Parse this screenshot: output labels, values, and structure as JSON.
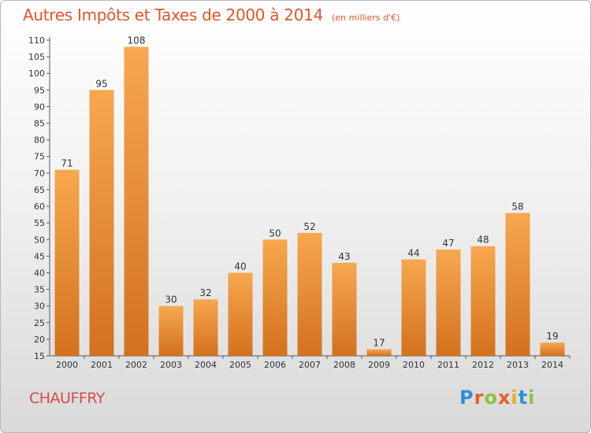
{
  "title": "Autres Impôts et Taxes de 2000 à 2014",
  "unit": "(en milliers d'€)",
  "commune": "CHAUFFRY",
  "logo": {
    "letters": [
      "P",
      "r",
      "o",
      "x",
      "i",
      "t",
      "i"
    ]
  },
  "colors": {
    "bar_top": "#f7a84f",
    "bar_bottom": "#d3711d",
    "title": "#e0562a",
    "commune": "#d54a4a"
  },
  "chart_data": {
    "type": "bar",
    "title": "Autres Impôts et Taxes de 2000 à 2014",
    "categories": [
      "2000",
      "2001",
      "2002",
      "2003",
      "2004",
      "2005",
      "2006",
      "2007",
      "2008",
      "2009",
      "2010",
      "2011",
      "2012",
      "2013",
      "2014"
    ],
    "values": [
      71,
      95,
      108,
      30,
      32,
      40,
      50,
      52,
      43,
      17,
      44,
      47,
      48,
      58,
      19
    ],
    "xlabel": "",
    "ylabel": "",
    "ylim": [
      15,
      110
    ],
    "yticks": [
      15,
      20,
      25,
      30,
      35,
      40,
      45,
      50,
      55,
      60,
      65,
      70,
      75,
      80,
      85,
      90,
      95,
      100,
      105,
      110
    ],
    "grid": false,
    "legend": "none"
  }
}
